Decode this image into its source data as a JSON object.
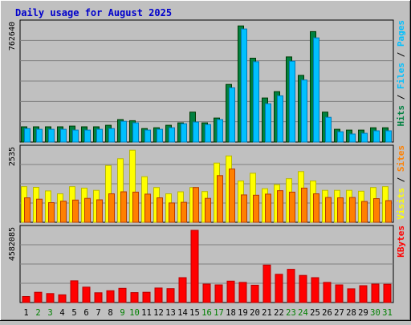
{
  "title": "Daily usage for August 2025",
  "colors": {
    "background": "#c0c0c0",
    "plot_background": "#c0c0c0",
    "gridline": "#808080",
    "title": "#0000cc",
    "hits": "#008040",
    "files": "#00c0ff",
    "sites": "#ff8000",
    "visits": "#ffff00",
    "kbytes": "#ff0000",
    "weekend_label": "#008000",
    "weekday_label": "#000000"
  },
  "chart_data": [
    {
      "type": "bar",
      "name": "hits-files",
      "max_label": "762640",
      "ymax": 762640,
      "legend": [
        {
          "text": "Hits",
          "color": "#008040"
        },
        {
          "text": "Files",
          "color": "#00c0ff"
        },
        {
          "text": "Pages",
          "color": "#00c0ff"
        }
      ],
      "categories": [
        "1",
        "2",
        "3",
        "4",
        "5",
        "6",
        "7",
        "8",
        "9",
        "10",
        "11",
        "12",
        "13",
        "14",
        "15",
        "16",
        "17",
        "18",
        "19",
        "20",
        "21",
        "22",
        "23",
        "24",
        "25",
        "26",
        "27",
        "28",
        "29",
        "30",
        "31"
      ],
      "series": [
        {
          "name": "Hits",
          "color": "#008040",
          "values": [
            99000,
            99000,
            99000,
            99000,
            104000,
            99000,
            99000,
            109000,
            146000,
            139000,
            88000,
            93000,
            109000,
            125000,
            195000,
            125000,
            156000,
            375000,
            756000,
            546000,
            287000,
            328000,
            554000,
            434000,
            719000,
            195000,
            83000,
            78000,
            78000,
            93000,
            93000
          ]
        },
        {
          "name": "Files",
          "color": "#00c0ff",
          "values": [
            88000,
            83000,
            83000,
            83000,
            78000,
            78000,
            83000,
            88000,
            135000,
            125000,
            78000,
            83000,
            93000,
            119000,
            130000,
            114000,
            146000,
            353000,
            736000,
            523000,
            249000,
            301000,
            526000,
            404000,
            678000,
            161000,
            67000,
            52000,
            57000,
            73000,
            73000
          ]
        }
      ]
    },
    {
      "type": "bar",
      "name": "visits-sites",
      "max_label": "2535",
      "ymax": 2535,
      "legend": [
        {
          "text": "Visits",
          "color": "#ffff00"
        },
        {
          "text": "Sites",
          "color": "#ff8000"
        }
      ],
      "categories": [
        "1",
        "2",
        "3",
        "4",
        "5",
        "6",
        "7",
        "8",
        "9",
        "10",
        "11",
        "12",
        "13",
        "14",
        "15",
        "16",
        "17",
        "18",
        "19",
        "20",
        "21",
        "22",
        "23",
        "24",
        "25",
        "26",
        "27",
        "28",
        "29",
        "30",
        "31"
      ],
      "series": [
        {
          "name": "Visits",
          "color": "#ffff00",
          "values": [
            1250,
            1225,
            1100,
            1000,
            1250,
            1200,
            1120,
            1990,
            2230,
            2530,
            1600,
            1220,
            1000,
            1070,
            1220,
            1080,
            2080,
            2330,
            1450,
            1720,
            1180,
            1320,
            1530,
            1780,
            1450,
            1120,
            1120,
            1120,
            1090,
            1220,
            1250
          ]
        },
        {
          "name": "Sites",
          "color": "#ff8000",
          "values": [
            860,
            810,
            690,
            740,
            780,
            840,
            790,
            1000,
            1070,
            1060,
            990,
            860,
            680,
            700,
            1220,
            840,
            1640,
            1870,
            960,
            950,
            990,
            1110,
            1060,
            1200,
            1000,
            870,
            860,
            870,
            730,
            830,
            760
          ]
        }
      ]
    },
    {
      "type": "bar",
      "name": "kbytes",
      "max_label": "4582085",
      "ymax": 4582085,
      "legend": [
        {
          "text": "KBytes",
          "color": "#ff0000"
        }
      ],
      "categories": [
        "1",
        "2",
        "3",
        "4",
        "5",
        "6",
        "7",
        "8",
        "9",
        "10",
        "11",
        "12",
        "13",
        "14",
        "15",
        "16",
        "17",
        "18",
        "19",
        "20",
        "21",
        "22",
        "23",
        "24",
        "25",
        "26",
        "27",
        "28",
        "29",
        "30",
        "31"
      ],
      "series": [
        {
          "name": "KBytes",
          "color": "#ff0000",
          "values": [
            380000,
            650000,
            570000,
            490000,
            1380000,
            980000,
            620000,
            750000,
            900000,
            630000,
            650000,
            920000,
            880000,
            1580000,
            4582085,
            1170000,
            1120000,
            1360000,
            1280000,
            1100000,
            2380000,
            1790000,
            2110000,
            1720000,
            1580000,
            1280000,
            1120000,
            870000,
            1070000,
            1170000,
            1160000
          ]
        }
      ]
    }
  ],
  "days": [
    {
      "label": "1",
      "weekend": false
    },
    {
      "label": "2",
      "weekend": true
    },
    {
      "label": "3",
      "weekend": true
    },
    {
      "label": "4",
      "weekend": false
    },
    {
      "label": "5",
      "weekend": false
    },
    {
      "label": "6",
      "weekend": false
    },
    {
      "label": "7",
      "weekend": false
    },
    {
      "label": "8",
      "weekend": false
    },
    {
      "label": "9",
      "weekend": true
    },
    {
      "label": "10",
      "weekend": true
    },
    {
      "label": "11",
      "weekend": false
    },
    {
      "label": "12",
      "weekend": false
    },
    {
      "label": "13",
      "weekend": false
    },
    {
      "label": "14",
      "weekend": false
    },
    {
      "label": "15",
      "weekend": false
    },
    {
      "label": "16",
      "weekend": true
    },
    {
      "label": "17",
      "weekend": true
    },
    {
      "label": "18",
      "weekend": false
    },
    {
      "label": "19",
      "weekend": false
    },
    {
      "label": "20",
      "weekend": false
    },
    {
      "label": "21",
      "weekend": false
    },
    {
      "label": "22",
      "weekend": false
    },
    {
      "label": "23",
      "weekend": true
    },
    {
      "label": "24",
      "weekend": true
    },
    {
      "label": "25",
      "weekend": false
    },
    {
      "label": "26",
      "weekend": false
    },
    {
      "label": "27",
      "weekend": false
    },
    {
      "label": "28",
      "weekend": false
    },
    {
      "label": "29",
      "weekend": false
    },
    {
      "label": "30",
      "weekend": true
    },
    {
      "label": "31",
      "weekend": true
    }
  ]
}
